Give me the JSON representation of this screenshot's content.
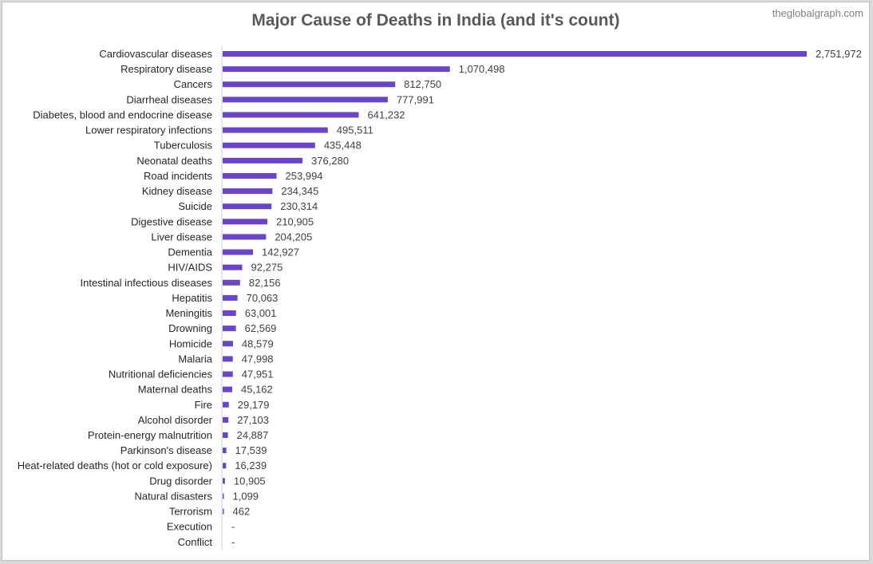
{
  "watermark": "theglobalgraph.com",
  "chart_data": {
    "type": "bar",
    "orientation": "horizontal",
    "title": "Major Cause of Deaths in India (and it's count)",
    "xlabel": "",
    "ylabel": "",
    "legend": "none",
    "grid": false,
    "bar_color": "#6a45c9",
    "categories": [
      "Cardiovascular diseases",
      "Respiratory disease",
      "Cancers",
      "Diarrheal diseases",
      "Diabetes, blood and endocrine disease",
      "Lower respiratory infections",
      "Tuberculosis",
      "Neonatal deaths",
      "Road incidents",
      "Kidney disease",
      "Suicide",
      "Digestive disease",
      "Liver disease",
      "Dementia",
      "HIV/AIDS",
      "Intestinal infectious diseases",
      "Hepatitis",
      "Meningitis",
      "Drowning",
      "Homicide",
      "Malaria",
      "Nutritional deficiencies",
      "Maternal deaths",
      "Fire",
      "Alcohol disorder",
      "Protein-energy malnutrition",
      "Parkinson's disease",
      "Heat-related deaths (hot or cold exposure)",
      "Drug disorder",
      "Natural disasters",
      "Terrorism",
      "Execution",
      "Conflict"
    ],
    "values": [
      2751972,
      1070498,
      812750,
      777991,
      641232,
      495511,
      435448,
      376280,
      253994,
      234345,
      230314,
      210905,
      204205,
      142927,
      92275,
      82156,
      70063,
      63001,
      62569,
      48579,
      47998,
      47951,
      45162,
      29179,
      27103,
      24887,
      17539,
      16239,
      10905,
      1099,
      462,
      null,
      null
    ],
    "value_labels": [
      "2,751,972",
      "1,070,498",
      "812,750",
      "777,991",
      "641,232",
      "495,511",
      "435,448",
      "376,280",
      "253,994",
      "234,345",
      "230,314",
      "210,905",
      "204,205",
      "142,927",
      "92,275",
      "82,156",
      "70,063",
      "63,001",
      "62,569",
      "48,579",
      "47,998",
      "47,951",
      "45,162",
      "29,179",
      "27,103",
      "24,887",
      "17,539",
      "16,239",
      "10,905",
      "1,099",
      "462",
      "-",
      "-"
    ]
  }
}
